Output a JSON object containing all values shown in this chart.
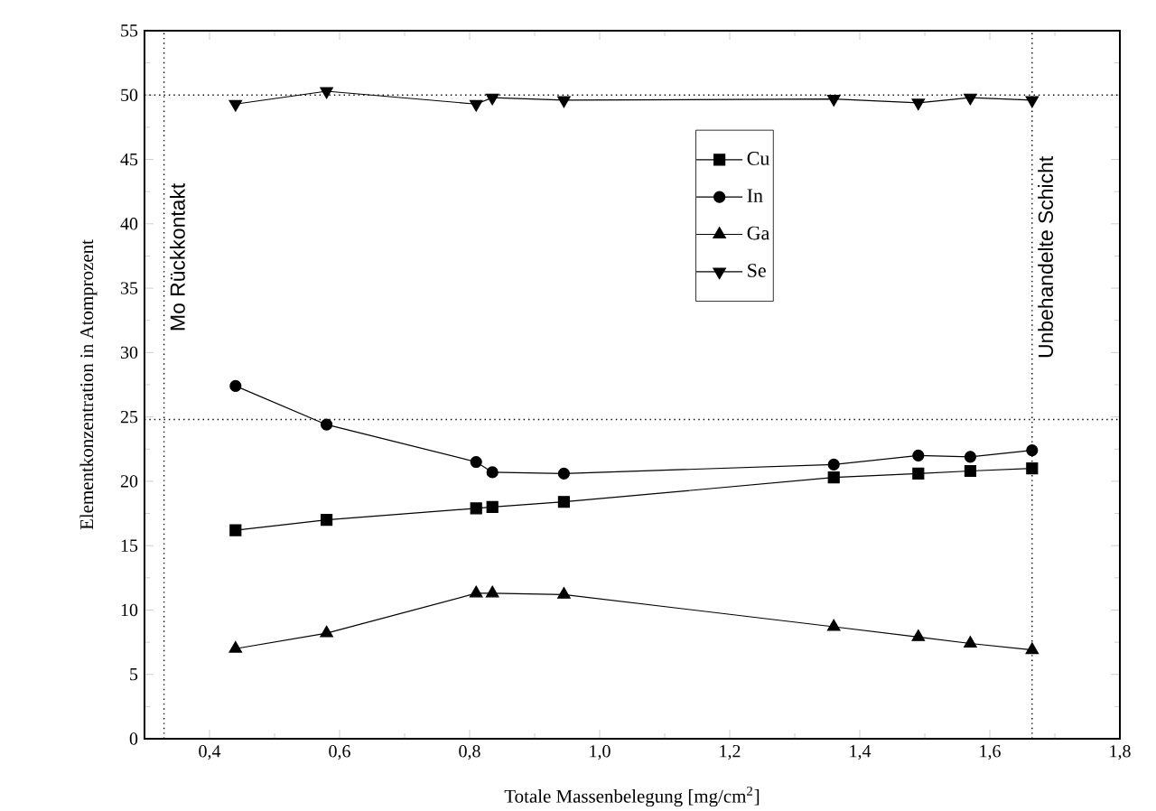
{
  "chart_data": {
    "type": "line",
    "xlabel": "Totale Massenbelegung [mg/cm$^{2}$]",
    "ylabel": "Elementkonzentration in Atomprozent",
    "x": [
      0.44,
      0.58,
      0.81,
      0.835,
      0.945,
      1.36,
      1.49,
      1.57,
      1.665
    ],
    "series": [
      {
        "name": "Cu",
        "color": "#000000",
        "marker": "square",
        "values": [
          16.2,
          17.0,
          17.9,
          18.0,
          18.4,
          20.3,
          20.6,
          20.8,
          21.0
        ]
      },
      {
        "name": "In",
        "color": "#000000",
        "marker": "circle",
        "values": [
          27.4,
          24.4,
          21.5,
          20.7,
          20.6,
          21.3,
          22.0,
          21.9,
          22.4
        ]
      },
      {
        "name": "Ga",
        "color": "#000000",
        "marker": "triangle",
        "values": [
          7.0,
          8.2,
          11.3,
          11.3,
          11.2,
          8.7,
          7.9,
          7.4,
          6.9
        ]
      },
      {
        "name": "Se",
        "color": "#000000",
        "marker": "triangle-down",
        "values": [
          49.3,
          50.3,
          49.3,
          49.8,
          49.6,
          49.7,
          49.4,
          49.8,
          49.6
        ]
      }
    ],
    "xlim": [
      0.3,
      1.8
    ],
    "ylim": [
      0,
      55
    ],
    "xticks": [
      {
        "value": 0.4,
        "label": "0,4"
      },
      {
        "value": 0.6,
        "label": "0,6"
      },
      {
        "value": 0.8,
        "label": "0,8"
      },
      {
        "value": 1.0,
        "label": "1,0"
      },
      {
        "value": 1.2,
        "label": "1,2"
      },
      {
        "value": 1.4,
        "label": "1,4"
      },
      {
        "value": 1.6,
        "label": "1,6"
      },
      {
        "value": 1.8,
        "label": "1,8"
      }
    ],
    "yticks": [
      0,
      5,
      10,
      15,
      20,
      25,
      30,
      35,
      40,
      45,
      50,
      55
    ],
    "ref_lines": [
      {
        "axis": "y",
        "value": 50,
        "line_style": "dotted"
      },
      {
        "axis": "y",
        "value": 24.8,
        "line_style": "dotted"
      },
      {
        "axis": "x",
        "value": 0.33,
        "line_style": "dotted",
        "label": "Mo Rückkontakt"
      },
      {
        "axis": "x",
        "value": 1.665,
        "line_style": "dotted",
        "label": "Unbehandelte Schicht"
      }
    ],
    "line_style": "solid",
    "grid": false,
    "legend": "top"
  }
}
